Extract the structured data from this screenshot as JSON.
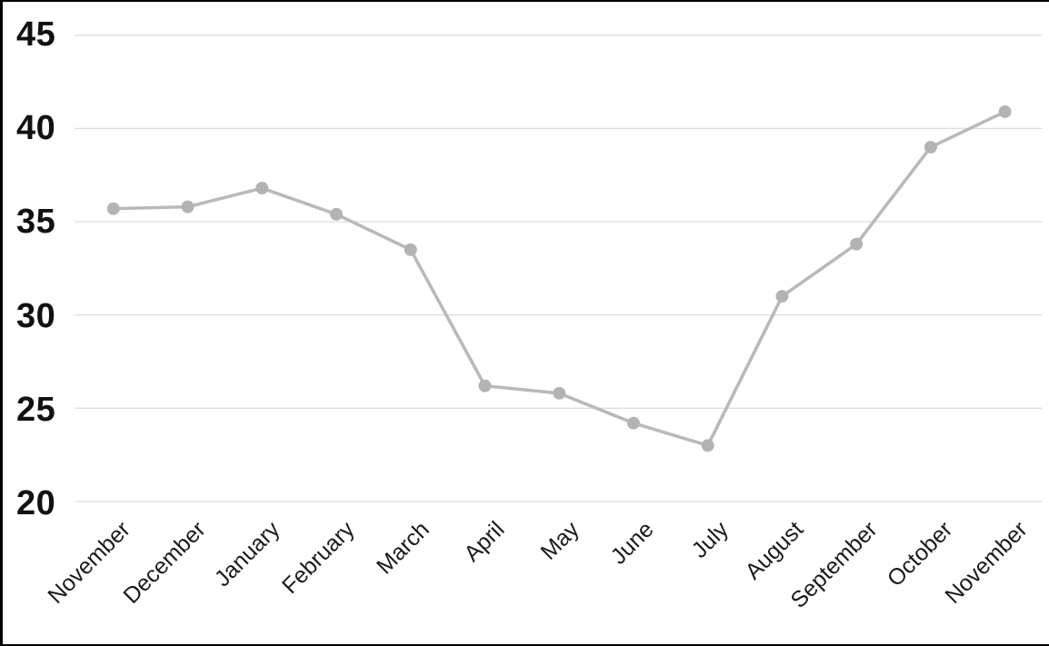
{
  "chart_data": {
    "type": "line",
    "title": "",
    "xlabel": "",
    "ylabel": "",
    "categories": [
      "November",
      "December",
      "January",
      "February",
      "March",
      "April",
      "May",
      "June",
      "July",
      "August",
      "September",
      "October",
      "November"
    ],
    "values": [
      35.7,
      35.8,
      36.8,
      35.4,
      33.5,
      26.2,
      25.8,
      24.2,
      23.0,
      31.0,
      33.8,
      39.0,
      40.9
    ],
    "ylim": [
      20,
      45
    ],
    "y_ticks": [
      45,
      40,
      35,
      30,
      25,
      20
    ],
    "grid": "horizontal-only",
    "legend_position": "none",
    "marker_shape": "circle",
    "colors": {
      "line": "#b9b9b9",
      "marker": "#b3b3b3",
      "gridline": "#dcdcdc",
      "y_tick_label": "#111111",
      "x_tick_label": "#1a1a1a",
      "border": "#000000",
      "background": "#ffffff"
    }
  }
}
